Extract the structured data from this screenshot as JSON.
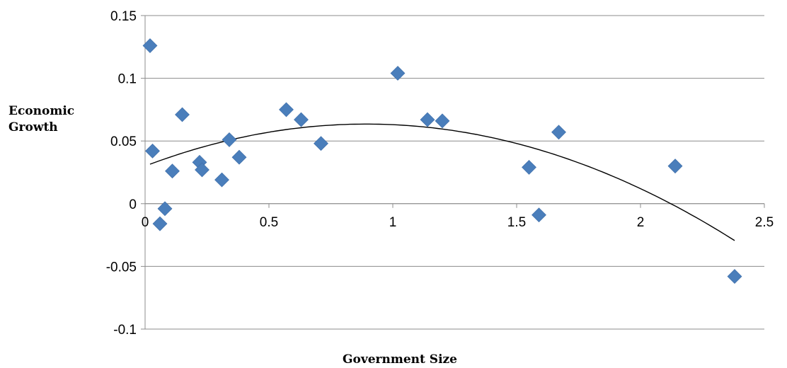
{
  "chart_data": {
    "type": "scatter",
    "title": "",
    "xlabel": "Government Size",
    "ylabel_lines": [
      "Economic",
      "Growth"
    ],
    "xlim": [
      0,
      2.5
    ],
    "ylim": [
      -0.1,
      0.15
    ],
    "x_ticks": [
      0,
      0.5,
      1,
      1.5,
      2,
      2.5
    ],
    "x_tick_labels": [
      "0",
      "0.5",
      "1",
      "1.5",
      "2",
      "2.5"
    ],
    "y_ticks": [
      -0.1,
      -0.05,
      0,
      0.05,
      0.1,
      0.15
    ],
    "y_tick_labels": [
      "-0.1",
      "-0.05",
      "0",
      "0.05",
      "0.1",
      "0.15"
    ],
    "grid": "horizontal",
    "legend": "none",
    "marker": "diamond",
    "marker_color": "#4a7ebb",
    "trendline": {
      "type": "polynomial",
      "order": 2,
      "x_range": [
        0.02,
        2.38
      ],
      "coefficients": [
        0.03,
        0.075,
        -0.042
      ],
      "color": "#000000"
    },
    "points": [
      {
        "x": 0.02,
        "y": 0.126
      },
      {
        "x": 0.03,
        "y": 0.042
      },
      {
        "x": 0.06,
        "y": -0.016
      },
      {
        "x": 0.08,
        "y": -0.004
      },
      {
        "x": 0.11,
        "y": 0.026
      },
      {
        "x": 0.15,
        "y": 0.071
      },
      {
        "x": 0.22,
        "y": 0.033
      },
      {
        "x": 0.23,
        "y": 0.027
      },
      {
        "x": 0.31,
        "y": 0.019
      },
      {
        "x": 0.34,
        "y": 0.051
      },
      {
        "x": 0.38,
        "y": 0.037
      },
      {
        "x": 0.57,
        "y": 0.075
      },
      {
        "x": 0.63,
        "y": 0.067
      },
      {
        "x": 0.71,
        "y": 0.048
      },
      {
        "x": 1.02,
        "y": 0.104
      },
      {
        "x": 1.14,
        "y": 0.067
      },
      {
        "x": 1.2,
        "y": 0.066
      },
      {
        "x": 1.55,
        "y": 0.029
      },
      {
        "x": 1.59,
        "y": -0.009
      },
      {
        "x": 1.67,
        "y": 0.057
      },
      {
        "x": 2.14,
        "y": 0.03
      },
      {
        "x": 2.38,
        "y": -0.058
      }
    ]
  }
}
